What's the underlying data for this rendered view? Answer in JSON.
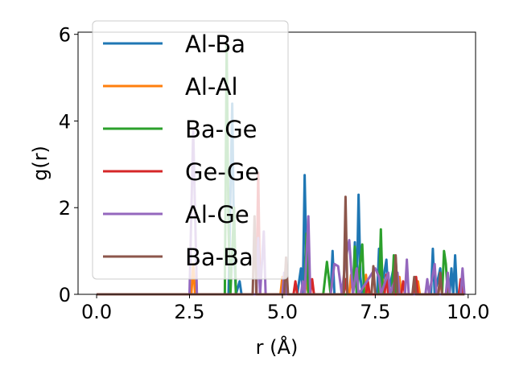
{
  "chart_data": {
    "type": "line",
    "xlabel": "r (Å)",
    "ylabel": "g(r)",
    "xlim": [
      -0.5,
      10.2
    ],
    "ylim": [
      0,
      6.05
    ],
    "xticks": [
      0.0,
      2.5,
      5.0,
      7.5,
      10.0
    ],
    "xtick_labels": [
      "0.0",
      "2.5",
      "5.0",
      "7.5",
      "10.0"
    ],
    "yticks": [
      0,
      2,
      4,
      6
    ],
    "ytick_labels": [
      "0",
      "2",
      "4",
      "6"
    ],
    "grid": false,
    "legend_position": "upper-left",
    "series": [
      {
        "name": "Al-Ba",
        "color": "#1f77b4",
        "points": [
          [
            0,
            0
          ],
          [
            3.55,
            0
          ],
          [
            3.6,
            2.2
          ],
          [
            3.65,
            4.4
          ],
          [
            3.7,
            1.0
          ],
          [
            3.75,
            0
          ],
          [
            3.85,
            0.3
          ],
          [
            3.9,
            0
          ],
          [
            5.4,
            0
          ],
          [
            5.5,
            0.6
          ],
          [
            5.55,
            0
          ],
          [
            5.6,
            2.75
          ],
          [
            5.65,
            0.6
          ],
          [
            5.7,
            0
          ],
          [
            6.3,
            0
          ],
          [
            6.35,
            1.0
          ],
          [
            6.4,
            0
          ],
          [
            6.9,
            0
          ],
          [
            6.95,
            1.2
          ],
          [
            7.0,
            0
          ],
          [
            7.05,
            2.3
          ],
          [
            7.1,
            0.4
          ],
          [
            7.15,
            0
          ],
          [
            7.55,
            0
          ],
          [
            7.6,
            1.05
          ],
          [
            7.65,
            0
          ],
          [
            7.8,
            0.8
          ],
          [
            7.85,
            0
          ],
          [
            8.05,
            0.85
          ],
          [
            8.1,
            0
          ],
          [
            9.0,
            0
          ],
          [
            9.05,
            1.05
          ],
          [
            9.1,
            0
          ],
          [
            9.25,
            0.6
          ],
          [
            9.3,
            0
          ],
          [
            9.5,
            0
          ],
          [
            9.55,
            0.6
          ],
          [
            9.6,
            0
          ],
          [
            9.65,
            0.9
          ],
          [
            9.7,
            0
          ],
          [
            9.9,
            0
          ]
        ]
      },
      {
        "name": "Al-Al",
        "color": "#ff7f0e",
        "points": [
          [
            0,
            0
          ],
          [
            2.55,
            0
          ],
          [
            2.6,
            0.7
          ],
          [
            2.65,
            0
          ],
          [
            4.95,
            0
          ],
          [
            5.0,
            0.4
          ],
          [
            5.05,
            0
          ],
          [
            5.6,
            0
          ],
          [
            5.65,
            0.35
          ],
          [
            5.7,
            0
          ],
          [
            6.8,
            0
          ],
          [
            6.85,
            0.45
          ],
          [
            6.9,
            0
          ],
          [
            7.2,
            0
          ],
          [
            7.25,
            0.45
          ],
          [
            7.3,
            0
          ],
          [
            7.65,
            0
          ],
          [
            7.7,
            0.35
          ],
          [
            7.75,
            0
          ],
          [
            8.1,
            0
          ],
          [
            8.15,
            0.4
          ],
          [
            8.2,
            0
          ],
          [
            8.6,
            0
          ],
          [
            8.65,
            0.3
          ],
          [
            8.7,
            0
          ],
          [
            9.2,
            0
          ],
          [
            9.25,
            0.35
          ],
          [
            9.3,
            0
          ],
          [
            9.9,
            0
          ]
        ]
      },
      {
        "name": "Ba-Ge",
        "color": "#2ca02c",
        "points": [
          [
            0,
            0
          ],
          [
            3.45,
            0
          ],
          [
            3.5,
            5.8
          ],
          [
            3.55,
            1.5
          ],
          [
            3.6,
            0
          ],
          [
            3.7,
            2.0
          ],
          [
            3.75,
            0
          ],
          [
            5.6,
            0
          ],
          [
            5.65,
            1.4
          ],
          [
            5.7,
            0
          ],
          [
            6.1,
            0
          ],
          [
            6.2,
            0.75
          ],
          [
            6.3,
            0
          ],
          [
            6.9,
            0
          ],
          [
            6.95,
            1.1
          ],
          [
            7.0,
            0
          ],
          [
            7.15,
            1.15
          ],
          [
            7.2,
            0
          ],
          [
            7.6,
            0
          ],
          [
            7.65,
            1.5
          ],
          [
            7.7,
            0
          ],
          [
            7.95,
            0
          ],
          [
            8.0,
            0.9
          ],
          [
            8.05,
            0
          ],
          [
            9.3,
            0
          ],
          [
            9.35,
            1.0
          ],
          [
            9.4,
            0.7
          ],
          [
            9.45,
            0
          ],
          [
            9.9,
            0
          ]
        ]
      },
      {
        "name": "Ge-Ge",
        "color": "#d62728",
        "points": [
          [
            0,
            0
          ],
          [
            4.3,
            0
          ],
          [
            4.35,
            2.8
          ],
          [
            4.4,
            0
          ],
          [
            5.3,
            0
          ],
          [
            5.35,
            0.3
          ],
          [
            5.4,
            0
          ],
          [
            5.75,
            0
          ],
          [
            5.8,
            0.35
          ],
          [
            5.85,
            0
          ],
          [
            6.65,
            0
          ],
          [
            6.7,
            0.35
          ],
          [
            6.75,
            0
          ],
          [
            7.25,
            0
          ],
          [
            7.3,
            0.3
          ],
          [
            7.35,
            0
          ],
          [
            7.75,
            0
          ],
          [
            7.8,
            0.45
          ],
          [
            7.85,
            0
          ],
          [
            8.2,
            0
          ],
          [
            8.25,
            0.3
          ],
          [
            8.3,
            0
          ],
          [
            8.55,
            0
          ],
          [
            8.6,
            0.4
          ],
          [
            8.65,
            0
          ],
          [
            9.4,
            0
          ],
          [
            9.45,
            0.3
          ],
          [
            9.5,
            0
          ],
          [
            9.75,
            0
          ],
          [
            9.8,
            0.35
          ],
          [
            9.85,
            0
          ],
          [
            9.9,
            0
          ]
        ]
      },
      {
        "name": "Al-Ge",
        "color": "#9467bd",
        "points": [
          [
            0,
            0
          ],
          [
            2.5,
            0
          ],
          [
            2.6,
            3.8
          ],
          [
            2.7,
            0
          ],
          [
            4.3,
            0
          ],
          [
            4.35,
            1.3
          ],
          [
            4.4,
            0
          ],
          [
            4.5,
            1.45
          ],
          [
            4.55,
            0
          ],
          [
            5.0,
            0
          ],
          [
            5.05,
            0.5
          ],
          [
            5.1,
            0
          ],
          [
            5.5,
            0
          ],
          [
            5.55,
            0.3
          ],
          [
            5.6,
            0
          ],
          [
            5.7,
            1.8
          ],
          [
            5.75,
            0
          ],
          [
            6.3,
            0
          ],
          [
            6.4,
            0.7
          ],
          [
            6.5,
            0.65
          ],
          [
            6.6,
            0
          ],
          [
            6.7,
            0.8
          ],
          [
            6.8,
            1.25
          ],
          [
            6.9,
            0
          ],
          [
            7.0,
            0.6
          ],
          [
            7.05,
            0
          ],
          [
            7.5,
            0.6
          ],
          [
            7.6,
            0.4
          ],
          [
            7.65,
            0
          ],
          [
            7.85,
            0.5
          ],
          [
            7.9,
            0
          ],
          [
            8.1,
            0.5
          ],
          [
            8.15,
            0
          ],
          [
            8.3,
            0
          ],
          [
            8.35,
            0.8
          ],
          [
            8.4,
            0
          ],
          [
            8.85,
            0
          ],
          [
            8.9,
            0.35
          ],
          [
            8.95,
            0
          ],
          [
            9.1,
            0.7
          ],
          [
            9.15,
            0
          ],
          [
            9.4,
            0
          ],
          [
            9.45,
            0.5
          ],
          [
            9.5,
            0
          ],
          [
            9.8,
            0
          ],
          [
            9.85,
            0.6
          ],
          [
            9.9,
            0
          ]
        ]
      },
      {
        "name": "Ba-Ba",
        "color": "#8c564b",
        "points": [
          [
            0,
            0
          ],
          [
            4.2,
            0
          ],
          [
            4.25,
            1.8
          ],
          [
            4.3,
            0
          ],
          [
            5.05,
            0
          ],
          [
            5.1,
            0.85
          ],
          [
            5.15,
            0
          ],
          [
            6.65,
            0
          ],
          [
            6.7,
            2.25
          ],
          [
            6.75,
            0
          ],
          [
            7.4,
            0
          ],
          [
            7.45,
            0.65
          ],
          [
            7.5,
            0
          ],
          [
            8.0,
            0
          ],
          [
            8.05,
            0.9
          ],
          [
            8.1,
            0
          ],
          [
            8.5,
            0
          ],
          [
            8.55,
            0.4
          ],
          [
            8.6,
            0
          ],
          [
            9.2,
            0
          ],
          [
            9.25,
            0.5
          ],
          [
            9.3,
            0
          ],
          [
            9.9,
            0
          ]
        ]
      }
    ]
  }
}
